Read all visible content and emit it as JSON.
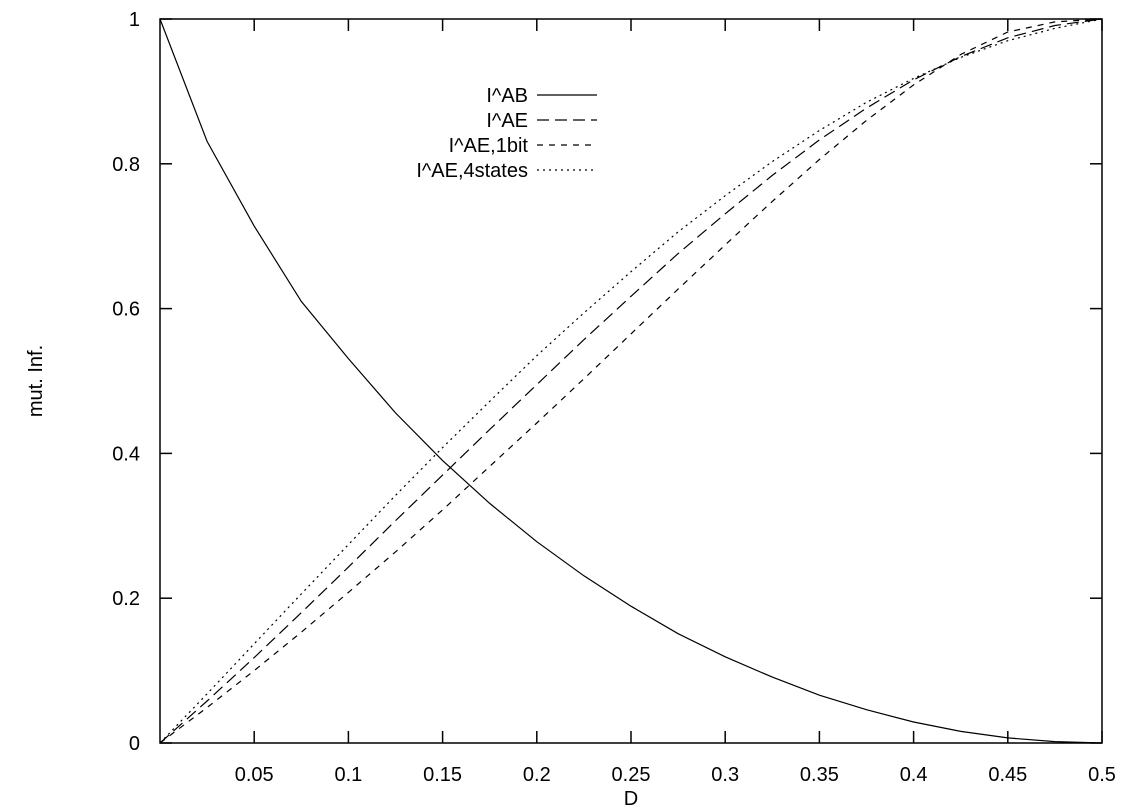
{
  "chart_data": {
    "type": "line",
    "title": "",
    "xlabel": "D",
    "ylabel": "mut. Inf.",
    "xlim": [
      0,
      0.5
    ],
    "ylim": [
      0,
      1
    ],
    "x_ticks": [
      0.05,
      0.1,
      0.15,
      0.2,
      0.25,
      0.3,
      0.35,
      0.4,
      0.45,
      0.5
    ],
    "x_tick_labels": [
      "0.05",
      "0.1",
      "0.15",
      "0.2",
      "0.25",
      "0.3",
      "0.35",
      "0.4",
      "0.45",
      "0.5"
    ],
    "y_ticks": [
      0,
      0.2,
      0.4,
      0.6,
      0.8,
      1
    ],
    "y_tick_labels": [
      "0",
      "0.2",
      "0.4",
      "0.6",
      "0.8",
      "1"
    ],
    "grid": false,
    "legend_position": "top-center",
    "series": [
      {
        "name": "I^AB",
        "style": "solid",
        "x": [
          0,
          0.025,
          0.05,
          0.075,
          0.1,
          0.125,
          0.15,
          0.175,
          0.2,
          0.225,
          0.25,
          0.275,
          0.3,
          0.325,
          0.35,
          0.375,
          0.4,
          0.425,
          0.45,
          0.475,
          0.5
        ],
        "y": [
          1.0,
          0.831,
          0.714,
          0.61,
          0.531,
          0.456,
          0.39,
          0.331,
          0.278,
          0.231,
          0.189,
          0.151,
          0.119,
          0.091,
          0.066,
          0.046,
          0.029,
          0.016,
          0.007,
          0.002,
          0.0
        ]
      },
      {
        "name": "I^AE",
        "style": "dashed",
        "x": [
          0,
          0.025,
          0.05,
          0.075,
          0.1,
          0.125,
          0.15,
          0.175,
          0.2,
          0.225,
          0.25,
          0.275,
          0.3,
          0.325,
          0.35,
          0.375,
          0.4,
          0.425,
          0.45,
          0.475,
          0.5
        ],
        "y": [
          0.0,
          0.058,
          0.118,
          0.18,
          0.243,
          0.307,
          0.37,
          0.433,
          0.495,
          0.557,
          0.617,
          0.676,
          0.731,
          0.784,
          0.833,
          0.877,
          0.916,
          0.948,
          0.974,
          0.991,
          1.0
        ]
      },
      {
        "name": "I^AE,1bit",
        "style": "short-dashed",
        "x": [
          0,
          0.025,
          0.05,
          0.075,
          0.1,
          0.125,
          0.15,
          0.175,
          0.2,
          0.225,
          0.25,
          0.275,
          0.3,
          0.325,
          0.35,
          0.375,
          0.4,
          0.425,
          0.45,
          0.475,
          0.5
        ],
        "y": [
          0.0,
          0.049,
          0.1,
          0.153,
          0.208,
          0.264,
          0.322,
          0.382,
          0.442,
          0.503,
          0.565,
          0.627,
          0.688,
          0.748,
          0.806,
          0.86,
          0.909,
          0.951,
          0.982,
          0.996,
          1.0
        ]
      },
      {
        "name": "I^AE,4states",
        "style": "dotted",
        "x": [
          0,
          0.025,
          0.05,
          0.075,
          0.1,
          0.125,
          0.15,
          0.175,
          0.2,
          0.225,
          0.25,
          0.275,
          0.3,
          0.325,
          0.35,
          0.375,
          0.4,
          0.425,
          0.45,
          0.475,
          0.5
        ],
        "y": [
          0.0,
          0.068,
          0.137,
          0.206,
          0.274,
          0.342,
          0.408,
          0.472,
          0.535,
          0.594,
          0.651,
          0.706,
          0.756,
          0.803,
          0.846,
          0.885,
          0.918,
          0.947,
          0.97,
          0.987,
          1.0
        ]
      }
    ]
  }
}
